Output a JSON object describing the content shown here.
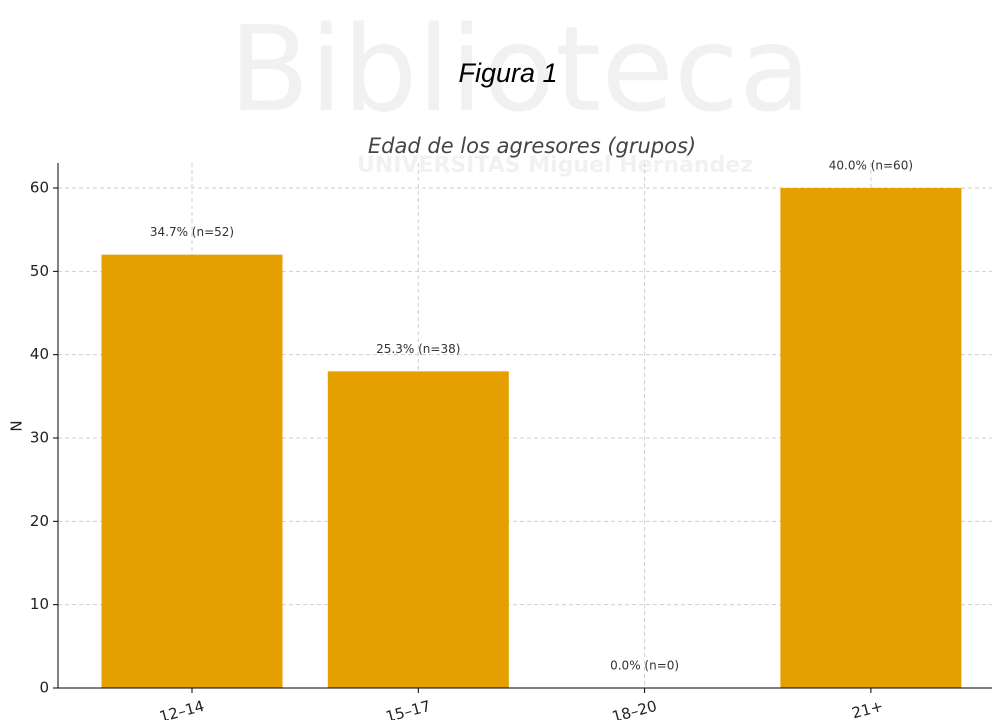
{
  "watermark": "Biblioteca",
  "watermark_subtitle": "UNIVERSITAS Miguel Hernández",
  "figure_caption": "Figura 1",
  "chart_data": {
    "type": "bar",
    "title": "Edad de los agresores (grupos)",
    "y_label": "N",
    "categories": [
      "12–14",
      "15–17",
      "18–20",
      "21+"
    ],
    "values": [
      52,
      38,
      0,
      60
    ],
    "value_labels": [
      "34.7% (n=52)",
      "25.3% (n=38)",
      "0.0% (n=0)",
      "40.0% (n=60)"
    ],
    "color": "#e69f00",
    "ylim": [
      0,
      63
    ],
    "yticks": [
      0,
      10,
      20,
      30,
      40,
      50,
      60
    ],
    "grid": true
  }
}
